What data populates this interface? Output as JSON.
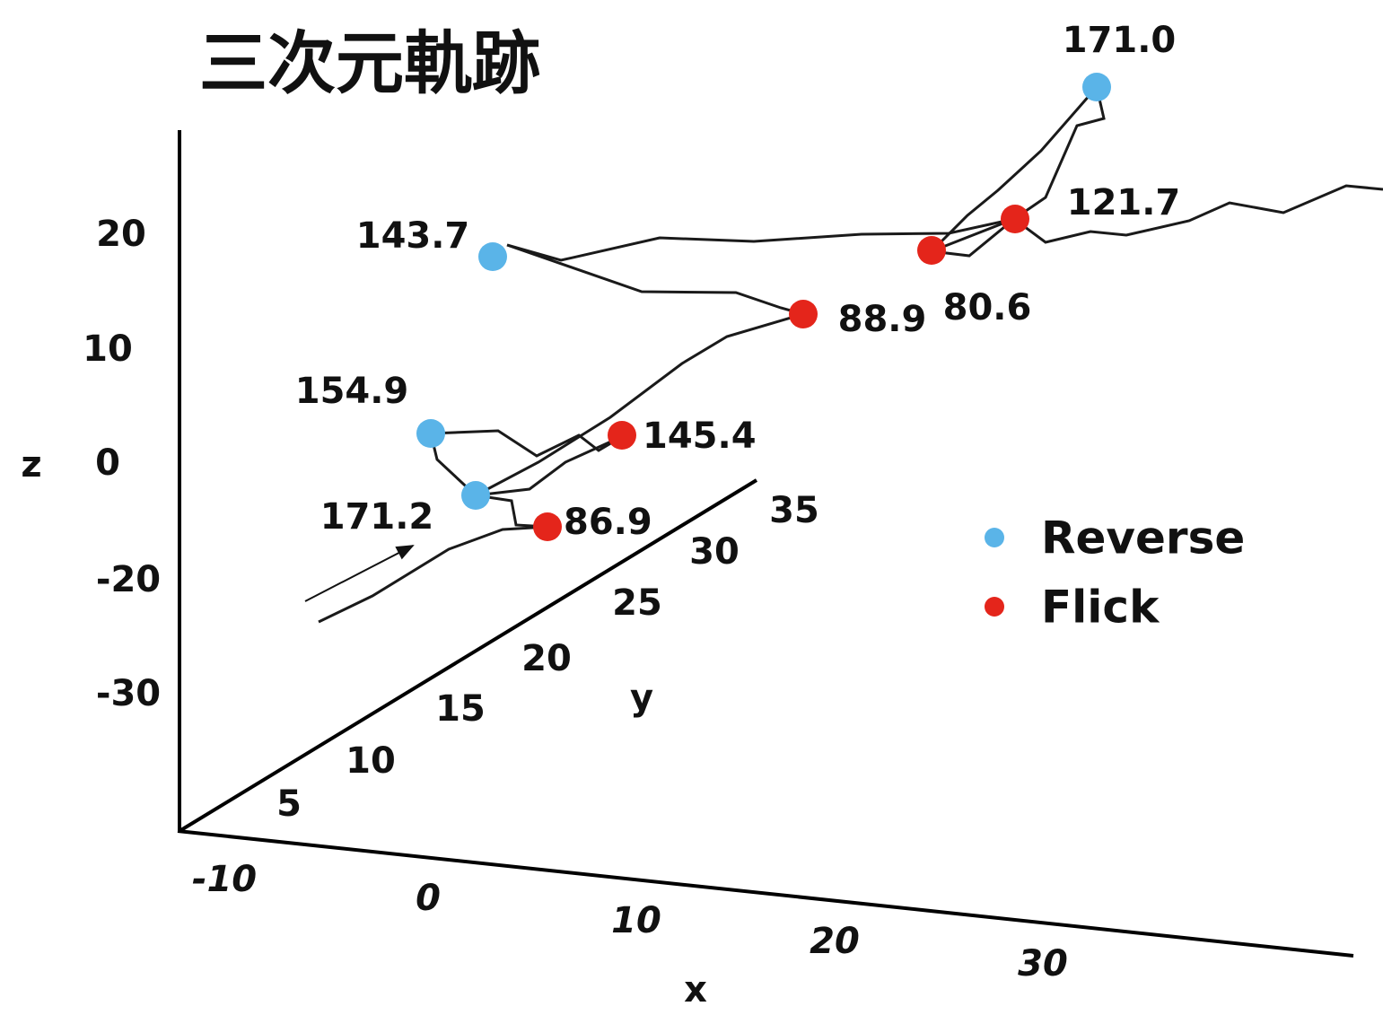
{
  "title": "三次元軌跡",
  "axes": {
    "z": {
      "label": "z",
      "ticks": [
        "20",
        "10",
        "0",
        "-20",
        "-30"
      ]
    },
    "y": {
      "label": "y",
      "ticks": [
        "5",
        "10",
        "15",
        "20",
        "25",
        "30",
        "35"
      ]
    },
    "x": {
      "label": "x",
      "ticks": [
        "-10",
        "0",
        "10",
        "20",
        "30"
      ]
    }
  },
  "legend": [
    {
      "label": "Reverse",
      "color": "#5ab4e8",
      "events": [
        "171.0",
        "143.7",
        "154.9",
        "171.2"
      ]
    },
    {
      "label": "Flick",
      "color": "#e4251b",
      "events": [
        "121.7",
        "88.9",
        "80.6",
        "145.4",
        "86.9"
      ]
    }
  ]
}
